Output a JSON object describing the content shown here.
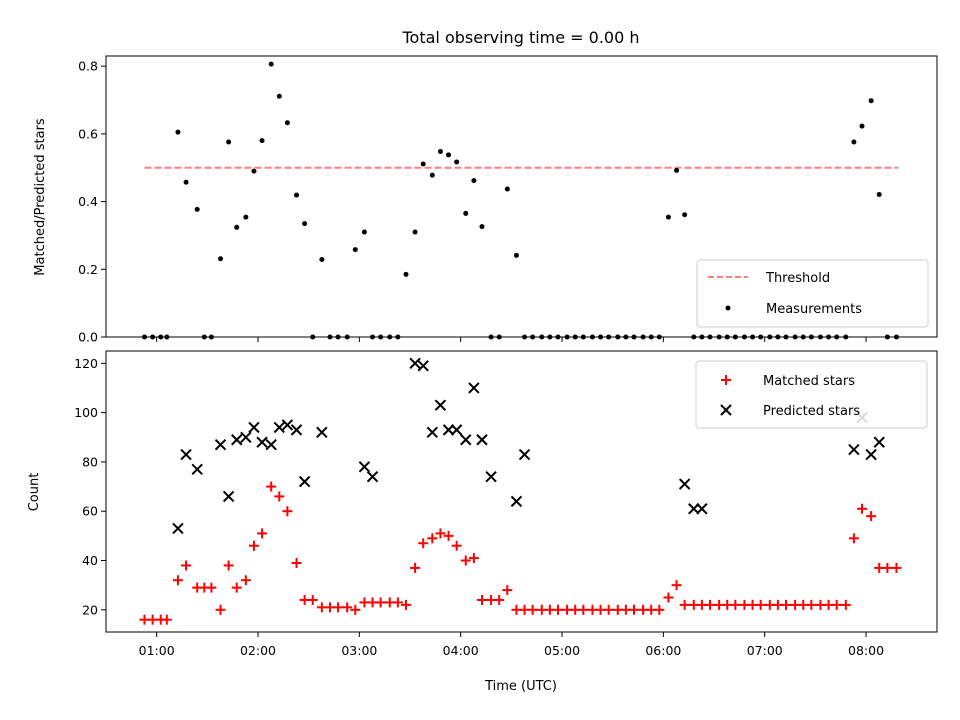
{
  "title": "Total observing time = 0.00 h",
  "xlabel": "Time (UTC)",
  "x_tick_labels": [
    "01:00",
    "02:00",
    "03:00",
    "04:00",
    "05:00",
    "06:00",
    "07:00",
    "08:00"
  ],
  "colors": {
    "threshold": "#ff7f7f",
    "measurements": "#000000",
    "matched": "#ff0000",
    "predicted": "#000000"
  },
  "chart_data": [
    {
      "type": "scatter",
      "panel": "top",
      "ylabel": "Matched/Predicted stars",
      "x_unit": "hours UTC",
      "xlim": [
        0.5,
        8.7
      ],
      "ylim": [
        0,
        0.83
      ],
      "y_ticks": [
        0.0,
        0.2,
        0.4,
        0.6,
        0.8
      ],
      "y_tick_labels": [
        "0.0",
        "0.2",
        "0.4",
        "0.6",
        "0.8"
      ],
      "legend_position": "lower right",
      "series": [
        {
          "name": "Threshold",
          "kind": "dashed-line",
          "x": [
            0.88,
            8.32
          ],
          "y": [
            0.5,
            0.5
          ]
        },
        {
          "name": "Measurements",
          "kind": "dots",
          "x": [
            0.88,
            0.96,
            1.04,
            1.1,
            1.21,
            1.29,
            1.4,
            1.47,
            1.54,
            1.63,
            1.71,
            1.79,
            1.88,
            1.96,
            2.04,
            2.13,
            2.21,
            2.29,
            2.38,
            2.46,
            2.54,
            2.63,
            2.71,
            2.79,
            2.88,
            2.96,
            3.05,
            3.13,
            3.21,
            3.3,
            3.38,
            3.46,
            3.55,
            3.63,
            3.72,
            3.8,
            3.88,
            3.96,
            4.05,
            4.13,
            4.21,
            4.3,
            4.38,
            4.46,
            4.55,
            4.63,
            4.71,
            4.8,
            4.88,
            4.96,
            5.05,
            5.13,
            5.21,
            5.3,
            5.38,
            5.46,
            5.55,
            5.63,
            5.71,
            5.8,
            5.88,
            5.96,
            6.05,
            6.13,
            6.21,
            6.3,
            6.38,
            6.46,
            6.55,
            6.63,
            6.71,
            6.8,
            6.88,
            6.96,
            7.05,
            7.13,
            7.21,
            7.3,
            7.38,
            7.46,
            7.55,
            7.63,
            7.71,
            7.8,
            7.88,
            7.96,
            8.05,
            8.13,
            8.21,
            8.3
          ],
          "y": [
            0.0,
            0.0,
            0.0,
            0.0,
            0.605,
            0.457,
            0.377,
            0.0,
            0.0,
            0.231,
            0.576,
            0.324,
            0.354,
            0.49,
            0.58,
            0.806,
            0.711,
            0.633,
            0.419,
            0.335,
            0.0,
            0.229,
            0.0,
            0.0,
            0.0,
            0.258,
            0.31,
            0.0,
            0.0,
            0.0,
            0.0,
            0.185,
            0.31,
            0.511,
            0.478,
            0.548,
            0.538,
            0.517,
            0.365,
            0.462,
            0.326,
            0.0,
            0.0,
            0.437,
            0.241,
            0.0,
            0.0,
            0.0,
            0.0,
            0.0,
            0.0,
            0.0,
            0.0,
            0.0,
            0.0,
            0.0,
            0.0,
            0.0,
            0.0,
            0.0,
            0.0,
            0.0,
            0.354,
            0.492,
            0.361,
            0.0,
            0.0,
            0.0,
            0.0,
            0.0,
            0.0,
            0.0,
            0.0,
            0.0,
            0.0,
            0.0,
            0.0,
            0.0,
            0.0,
            0.0,
            0.0,
            0.0,
            0.0,
            0.0,
            0.576,
            0.623,
            0.698,
            0.421,
            0.0,
            0.0
          ]
        }
      ]
    },
    {
      "type": "scatter",
      "panel": "bottom",
      "ylabel": "Count",
      "xlabel": "Time (UTC)",
      "x_unit": "hours UTC",
      "xlim": [
        0.5,
        8.7
      ],
      "ylim": [
        11,
        125
      ],
      "y_ticks": [
        20,
        40,
        60,
        80,
        100,
        120
      ],
      "y_tick_labels": [
        "20",
        "40",
        "60",
        "80",
        "100",
        "120"
      ],
      "legend_position": "upper right",
      "series": [
        {
          "name": "Matched stars",
          "kind": "plus",
          "x": [
            0.88,
            0.96,
            1.04,
            1.1,
            1.21,
            1.29,
            1.4,
            1.47,
            1.54,
            1.63,
            1.71,
            1.79,
            1.88,
            1.96,
            2.04,
            2.13,
            2.21,
            2.29,
            2.38,
            2.46,
            2.54,
            2.63,
            2.71,
            2.79,
            2.88,
            2.96,
            3.05,
            3.13,
            3.21,
            3.3,
            3.38,
            3.46,
            3.55,
            3.63,
            3.72,
            3.8,
            3.88,
            3.96,
            4.05,
            4.13,
            4.21,
            4.3,
            4.38,
            4.46,
            4.55,
            4.63,
            4.71,
            4.8,
            4.88,
            4.96,
            5.05,
            5.13,
            5.21,
            5.3,
            5.38,
            5.46,
            5.55,
            5.63,
            5.71,
            5.8,
            5.88,
            5.96,
            6.05,
            6.13,
            6.21,
            6.3,
            6.38,
            6.46,
            6.55,
            6.63,
            6.71,
            6.8,
            6.88,
            6.96,
            7.05,
            7.13,
            7.21,
            7.3,
            7.38,
            7.46,
            7.55,
            7.63,
            7.71,
            7.8,
            7.88,
            7.96,
            8.05,
            8.13,
            8.21,
            8.3
          ],
          "y": [
            16,
            16,
            16,
            16,
            32,
            38,
            29,
            29,
            29,
            20,
            38,
            29,
            32,
            46,
            51,
            70,
            66,
            60,
            39,
            24,
            24,
            21,
            21,
            21,
            21,
            20,
            23,
            23,
            23,
            23,
            23,
            22,
            37,
            47,
            49,
            51,
            50,
            46,
            40,
            41,
            24,
            24,
            24,
            28,
            20,
            20,
            20,
            20,
            20,
            20,
            20,
            20,
            20,
            20,
            20,
            20,
            20,
            20,
            20,
            20,
            20,
            20,
            25,
            30,
            22,
            22,
            22,
            22,
            22,
            22,
            22,
            22,
            22,
            22,
            22,
            22,
            22,
            22,
            22,
            22,
            22,
            22,
            22,
            22,
            49,
            61,
            58,
            37,
            37,
            37
          ]
        },
        {
          "name": "Predicted stars",
          "kind": "cross",
          "x": [
            1.21,
            1.29,
            1.4,
            1.63,
            1.71,
            1.79,
            1.88,
            1.96,
            2.04,
            2.13,
            2.21,
            2.29,
            2.38,
            2.46,
            2.63,
            3.05,
            3.13,
            3.55,
            3.63,
            3.72,
            3.8,
            3.88,
            3.96,
            4.05,
            4.13,
            4.21,
            4.3,
            4.55,
            4.63,
            6.21,
            6.3,
            6.38,
            7.88,
            7.96,
            8.05,
            8.13
          ],
          "y": [
            53,
            83,
            77,
            87,
            66,
            89,
            90,
            94,
            88,
            87,
            94,
            95,
            93,
            72,
            92,
            78,
            74,
            120,
            119,
            92,
            103,
            93,
            93,
            89,
            110,
            89,
            74,
            64,
            83,
            71,
            61,
            61,
            85,
            98,
            83,
            88
          ]
        }
      ]
    }
  ]
}
